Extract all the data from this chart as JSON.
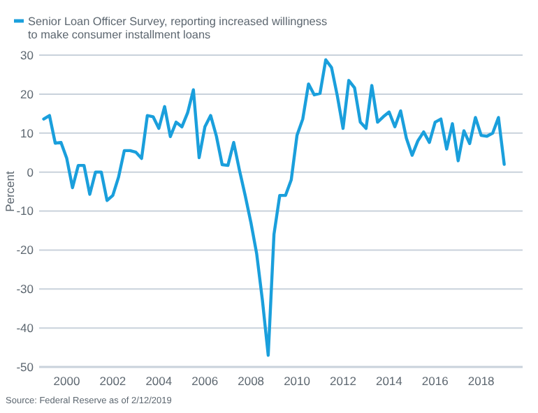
{
  "chart_data": {
    "type": "line",
    "x": [
      1999.0,
      1999.25,
      1999.5,
      1999.75,
      2000.0,
      2000.25,
      2000.5,
      2000.75,
      2001.0,
      2001.25,
      2001.5,
      2001.75,
      2002.0,
      2002.25,
      2002.5,
      2002.75,
      2003.0,
      2003.25,
      2003.5,
      2003.75,
      2004.0,
      2004.25,
      2004.5,
      2004.75,
      2005.0,
      2005.25,
      2005.5,
      2005.75,
      2006.0,
      2006.25,
      2006.5,
      2006.75,
      2007.0,
      2007.25,
      2007.5,
      2007.75,
      2008.0,
      2008.25,
      2008.5,
      2008.75,
      2009.0,
      2009.25,
      2009.5,
      2009.75,
      2010.0,
      2010.25,
      2010.5,
      2010.75,
      2011.0,
      2011.25,
      2011.5,
      2011.75,
      2012.0,
      2012.25,
      2012.5,
      2012.75,
      2013.0,
      2013.25,
      2013.5,
      2013.75,
      2014.0,
      2014.25,
      2014.5,
      2014.75,
      2015.0,
      2015.25,
      2015.5,
      2015.75,
      2016.0,
      2016.25,
      2016.5,
      2016.75,
      2017.0,
      2017.25,
      2017.5,
      2017.75,
      2018.0,
      2018.25,
      2018.5,
      2018.75,
      2019.0
    ],
    "series": [
      {
        "name": "Senior Loan Officer Survey, reporting increased willingness to make consumer installment loans",
        "color": "#1a9fdc",
        "values": [
          13.6,
          14.5,
          7.4,
          7.6,
          3.5,
          -4,
          1.7,
          1.7,
          -5.7,
          0,
          0,
          -7.3,
          -6,
          -1.3,
          5.5,
          5.5,
          5.1,
          3.5,
          14.5,
          14.2,
          11.2,
          16.8,
          9.1,
          12.8,
          11.6,
          15.2,
          21.1,
          3.7,
          11.6,
          14.5,
          9.2,
          1.9,
          1.7,
          7.6,
          0.5,
          -6,
          -13,
          -21,
          -33,
          -47,
          -16,
          -6,
          -6,
          -2,
          9.4,
          13.6,
          22.6,
          19.8,
          20.2,
          28.8,
          26.8,
          19.6,
          11.2,
          23.5,
          21.6,
          12.8,
          11.2,
          22.2,
          12.8,
          14.2,
          15.4,
          11.6,
          15.7,
          8.7,
          4.3,
          8,
          10.3,
          7.6,
          12.8,
          13.6,
          5.9,
          12.4,
          2.9,
          10.6,
          7.3,
          14,
          9.4,
          9.2,
          10,
          14,
          2
        ]
      }
    ],
    "xlim": [
      1998.8,
      2019.8
    ],
    "xticks": [
      2000,
      2002,
      2004,
      2006,
      2008,
      2010,
      2012,
      2014,
      2016,
      2018
    ],
    "ylim": [
      -50,
      30
    ],
    "yticks": [
      -50,
      -40,
      -30,
      -20,
      -10,
      0,
      10,
      20,
      30
    ],
    "ylabel": "Percent",
    "grid": "y",
    "legend": "top left",
    "annotations": [
      "Source: Federal Reserve as of 2/12/2019"
    ]
  }
}
